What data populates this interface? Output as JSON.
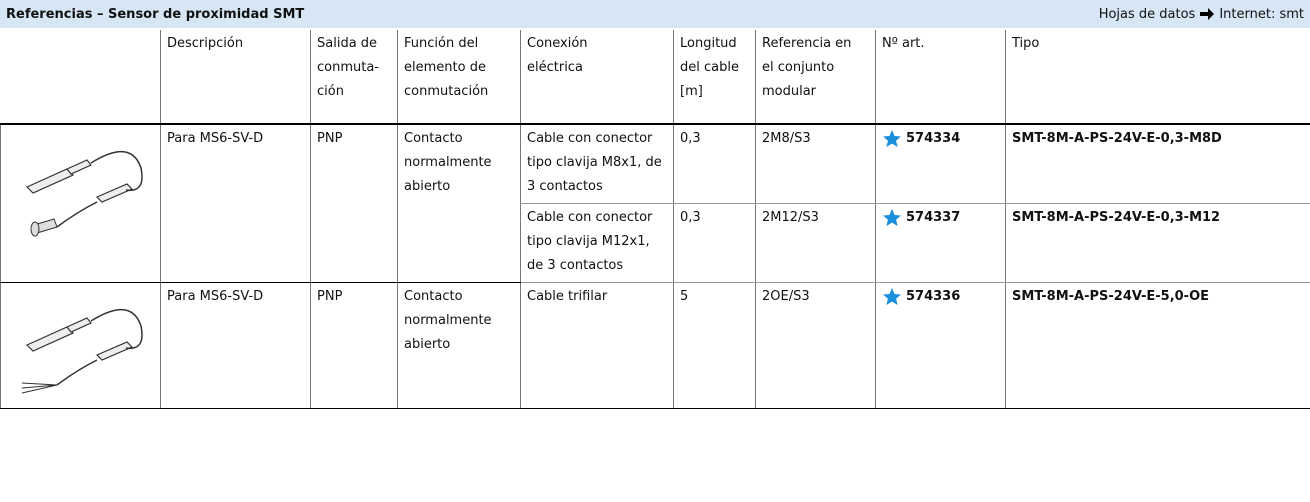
{
  "header": {
    "title": "Referencias – Sensor de proximidad SMT",
    "link_label": "Hojas de datos",
    "link_target": "Internet: smt"
  },
  "table": {
    "columns": [
      [
        "Descripción"
      ],
      [
        "Salida de",
        "conmuta-",
        "ción"
      ],
      [
        "Función del",
        "elemento de",
        "conmutación"
      ],
      [
        "Conexión",
        "eléctrica"
      ],
      [
        "Longitud",
        "del cable",
        "[m]"
      ],
      [
        "Referencia en",
        "el conjunto",
        "modular"
      ],
      [
        "Nº art."
      ],
      [
        "Tipo"
      ]
    ],
    "rows": [
      {
        "description": "Para MS6-SV-D",
        "output": "PNP",
        "function": "Contacto normalmente abierto",
        "variants": [
          {
            "connection": "Cable con conector tipo clavija M8x1, de 3 contactos",
            "length": "0,3",
            "reference": "2M8/S3",
            "part_number": "574334",
            "type": "SMT-8M-A-PS-24V-E-0,3-M8D"
          },
          {
            "connection": "Cable con conector tipo clavija M12x1, de 3 contactos",
            "length": "0,3",
            "reference": "2M12/S3",
            "part_number": "574337",
            "type": "SMT-8M-A-PS-24V-E-0,3-M12"
          }
        ]
      },
      {
        "description": "Para MS6-SV-D",
        "output": "PNP",
        "function": "Contacto normalmente abierto",
        "variants": [
          {
            "connection": "Cable trifilar",
            "length": "5",
            "reference": "2OE/S3",
            "part_number": "574336",
            "type": "SMT-8M-A-PS-24V-E-5,0-OE"
          }
        ]
      }
    ]
  }
}
